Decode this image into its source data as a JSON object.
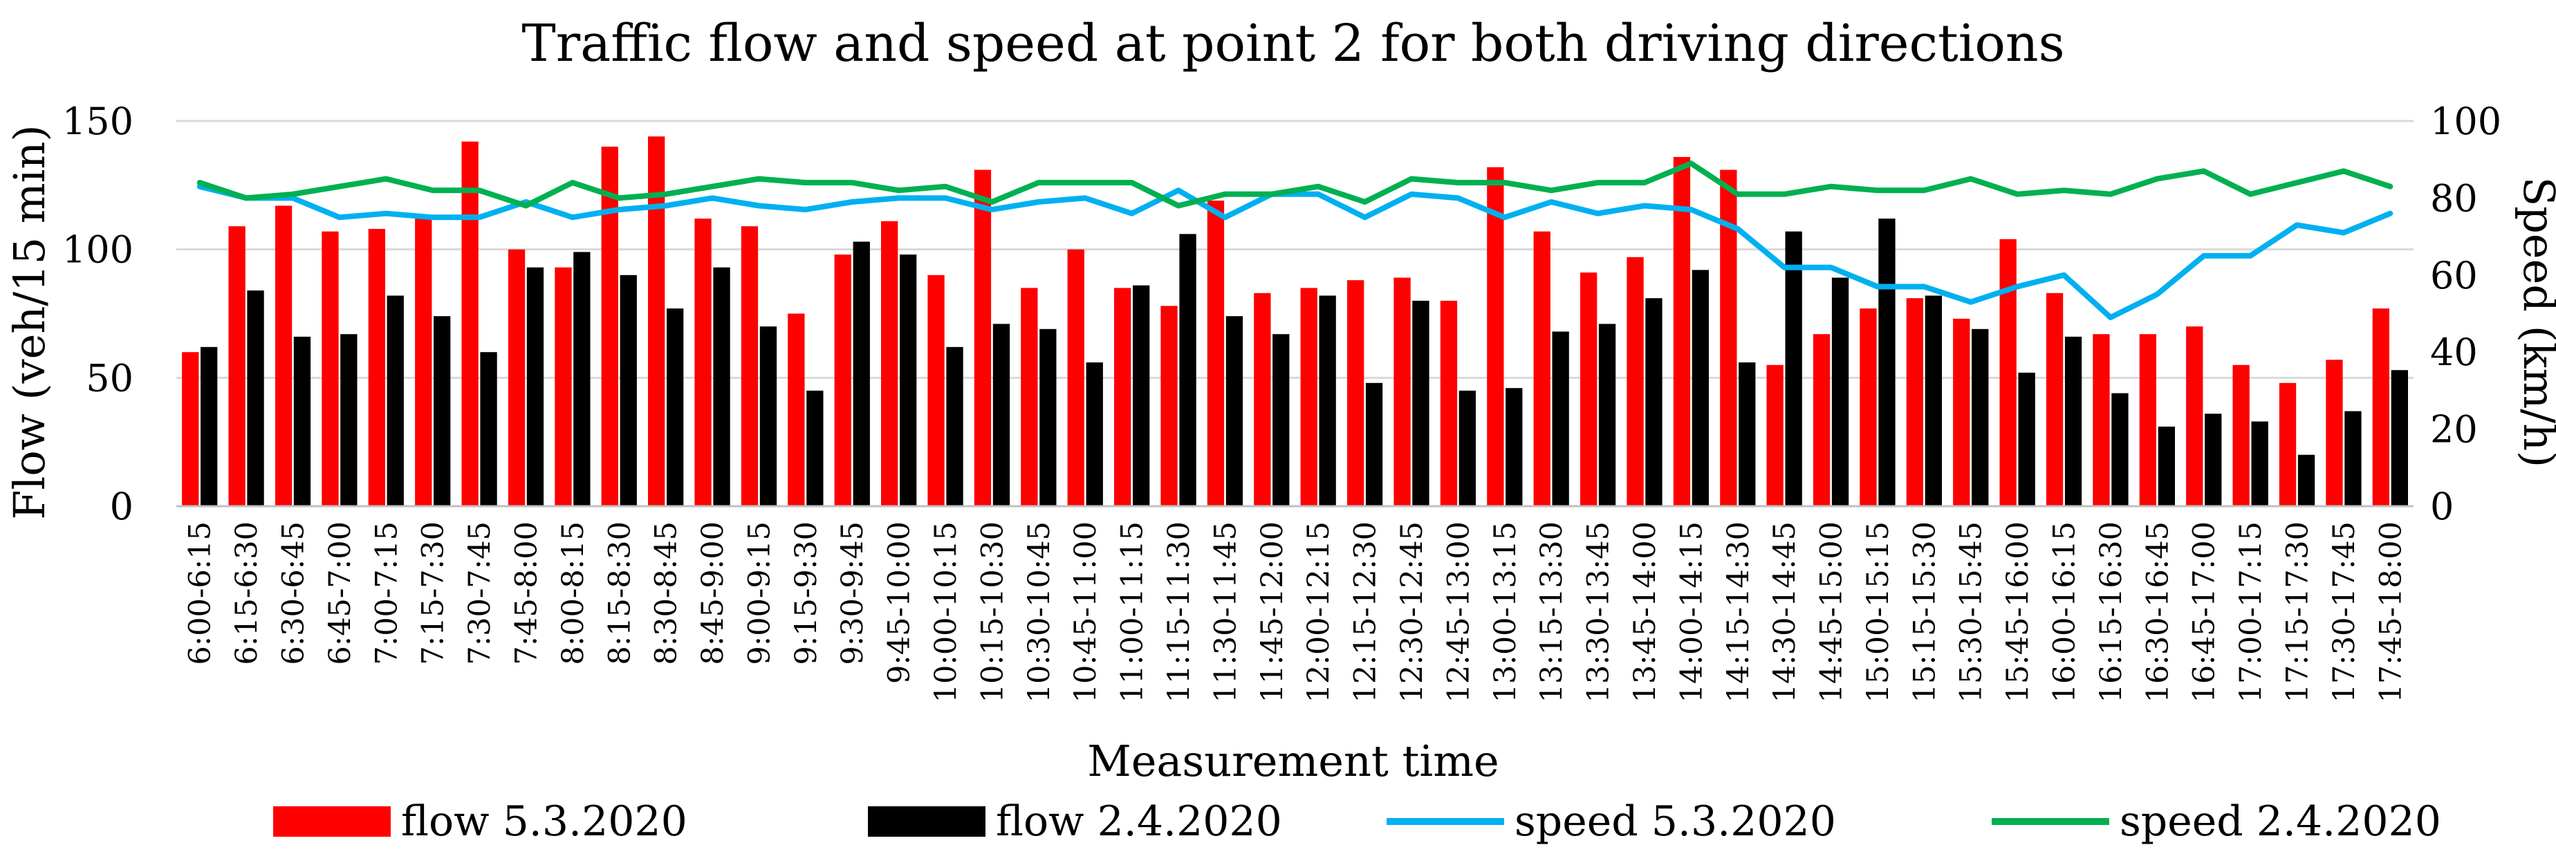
{
  "chart_data": {
    "type": "bar",
    "title": "Traffic flow and speed at point 2 for both driving directions",
    "xlabel": "Measurement time",
    "ylabel": "Flow (veh/15 min)",
    "y2label": "Speed (km/h)",
    "ylim": [
      0,
      150
    ],
    "yticks": [
      "0",
      "50",
      "100",
      "150"
    ],
    "y2lim": [
      0,
      100
    ],
    "y2ticks": [
      "0",
      "20",
      "40",
      "60",
      "80",
      "100"
    ],
    "grid": true,
    "legend": "bottom",
    "categories": [
      "6:00-6:15",
      "6:15-6:30",
      "6:30-6:45",
      "6:45-7:00",
      "7:00-7:15",
      "7:15-7:30",
      "7:30-7:45",
      "7:45-8:00",
      "8:00-8:15",
      "8:15-8:30",
      "8:30-8:45",
      "8:45-9:00",
      "9:00-9:15",
      "9:15-9:30",
      "9:30-9:45",
      "9:45-10:00",
      "10:00-10:15",
      "10:15-10:30",
      "10:30-10:45",
      "10:45-11:00",
      "11:00-11:15",
      "11:15-11:30",
      "11:30-11:45",
      "11:45-12:00",
      "12:00-12:15",
      "12:15-12:30",
      "12:30-12:45",
      "12:45-13:00",
      "13:00-13:15",
      "13:15-13:30",
      "13:30-13:45",
      "13:45-14:00",
      "14:00-14:15",
      "14:15-14:30",
      "14:30-14:45",
      "14:45-15:00",
      "15:00-15:15",
      "15:15-15:30",
      "15:30-15:45",
      "15:45-16:00",
      "16:00-16:15",
      "16:15-16:30",
      "16:30-16:45",
      "16:45-17:00",
      "17:00-17:15",
      "17:15-17:30",
      "17:30-17:45",
      "17:45-18:00"
    ],
    "series": [
      {
        "name": "flow 5.3.2020",
        "kind": "bar",
        "axis": "left",
        "color": "#ff0000",
        "values": [
          60,
          109,
          117,
          107,
          108,
          112,
          142,
          100,
          93,
          140,
          144,
          112,
          109,
          75,
          98,
          111,
          90,
          131,
          85,
          100,
          85,
          78,
          119,
          83,
          85,
          88,
          89,
          80,
          132,
          107,
          91,
          97,
          136,
          131,
          55,
          67,
          77,
          81,
          73,
          104,
          83,
          67,
          67,
          70,
          55,
          48,
          57,
          77
        ]
      },
      {
        "name": "flow 2.4.2020",
        "kind": "bar",
        "axis": "left",
        "color": "#000000",
        "values": [
          62,
          84,
          66,
          67,
          82,
          74,
          60,
          93,
          99,
          90,
          77,
          93,
          70,
          45,
          103,
          98,
          62,
          71,
          69,
          56,
          86,
          106,
          74,
          67,
          82,
          48,
          80,
          45,
          46,
          68,
          71,
          81,
          92,
          56,
          107,
          89,
          112,
          82,
          69,
          52,
          66,
          44,
          31,
          36,
          33,
          20,
          37,
          53
        ]
      },
      {
        "name": "speed 5.3.2020",
        "kind": "line",
        "axis": "right",
        "color": "#00b0f0",
        "values": [
          83,
          80,
          80,
          75,
          76,
          75,
          75,
          79,
          75,
          77,
          78,
          80,
          78,
          77,
          79,
          80,
          80,
          77,
          79,
          80,
          76,
          82,
          75,
          81,
          81,
          75,
          81,
          80,
          75,
          79,
          76,
          78,
          77,
          72,
          62,
          62,
          57,
          57,
          53,
          57,
          60,
          49,
          55,
          65,
          65,
          73,
          71,
          76
        ]
      },
      {
        "name": "speed 2.4.2020",
        "kind": "line",
        "axis": "right",
        "color": "#00b050",
        "values": [
          84,
          80,
          81,
          83,
          85,
          82,
          82,
          78,
          84,
          80,
          81,
          83,
          85,
          84,
          84,
          82,
          83,
          79,
          84,
          84,
          84,
          78,
          81,
          81,
          83,
          79,
          85,
          84,
          84,
          82,
          84,
          84,
          89,
          81,
          81,
          83,
          82,
          82,
          85,
          81,
          82,
          81,
          85,
          87,
          81,
          84,
          87,
          83
        ]
      }
    ]
  }
}
